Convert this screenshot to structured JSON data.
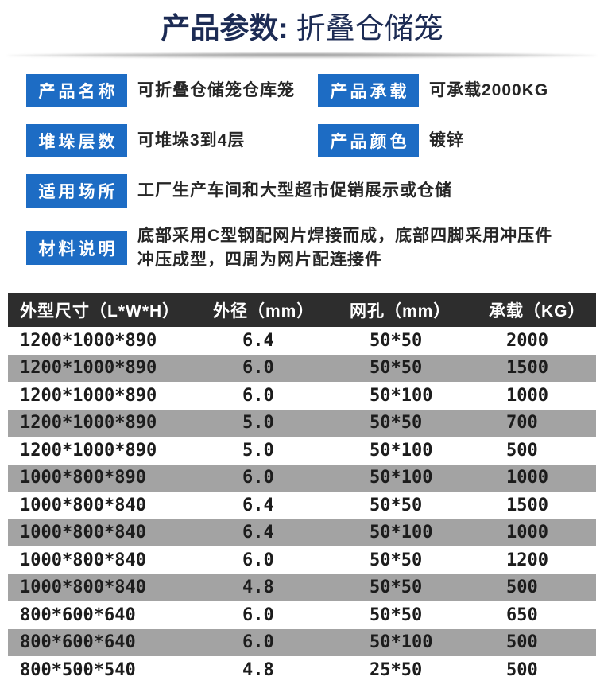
{
  "page": {
    "title_prefix": "产品参数:",
    "title_product": "折叠仓储笼"
  },
  "specs": {
    "product_name": {
      "label": "产品名称",
      "value": "可折叠仓储笼仓库笼"
    },
    "product_load": {
      "label": "产品承载",
      "value": "可承载2000KG"
    },
    "stack_layers": {
      "label": "堆垛层数",
      "value": "可堆垛3到4层"
    },
    "product_color": {
      "label": "产品颜色",
      "value": "镀锌"
    },
    "usage_place": {
      "label": "适用场所",
      "value": "工厂生产车间和大型超市促销展示或仓储"
    },
    "material_desc": {
      "label": "材料说明",
      "value_line1": "底部采用C型钢配网片焊接而成，底部四脚采用冲压件",
      "value_line2": "冲压成型，四周为网片配连接件"
    }
  },
  "table": {
    "headers": [
      "外型尺寸（L*W*H）",
      "外径（mm）",
      "网孔（mm）",
      "承载（KG）"
    ],
    "rows": [
      [
        "1200*1000*890",
        "6.4",
        "50*50",
        "2000"
      ],
      [
        "1200*1000*890",
        "6.0",
        "50*50",
        "1500"
      ],
      [
        "1200*1000*890",
        "6.0",
        "50*100",
        "1000"
      ],
      [
        "1200*1000*890",
        "5.0",
        "50*50",
        "700"
      ],
      [
        "1200*1000*890",
        "5.0",
        "50*100",
        "500"
      ],
      [
        "1000*800*890",
        "6.0",
        "50*100",
        "1000"
      ],
      [
        "1000*800*840",
        "6.4",
        "50*50",
        "1500"
      ],
      [
        "1000*800*840",
        "6.4",
        "50*100",
        "1000"
      ],
      [
        "1000*800*840",
        "6.0",
        "50*50",
        "1200"
      ],
      [
        "1000*800*840",
        "4.8",
        "50*50",
        "500"
      ],
      [
        "800*600*640",
        "6.0",
        "50*50",
        "650"
      ],
      [
        "800*600*640",
        "6.0",
        "50*100",
        "500"
      ],
      [
        "800*500*540",
        "4.8",
        "25*50",
        "500"
      ]
    ]
  },
  "colors": {
    "title_navy": "#1c2b54",
    "badge_blue": "#1d6cc4",
    "table_header_bg": "#2d2d2d",
    "row_alt_gray": "#a3a3a3"
  }
}
